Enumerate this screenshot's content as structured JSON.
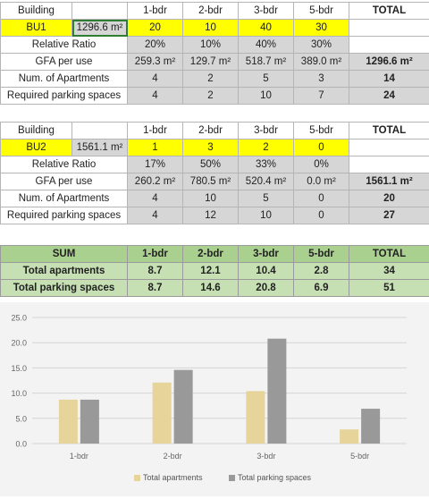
{
  "block1": {
    "header": {
      "label": "Building",
      "cols": [
        "1-bdr",
        "2-bdr",
        "3-bdr",
        "5-bdr"
      ],
      "total": "TOTAL"
    },
    "building": {
      "name": "BU1",
      "gfa": "1296.6 m²",
      "counts": [
        "20",
        "10",
        "40",
        "30"
      ]
    },
    "ratio": {
      "label": "Relative Ratio",
      "values": [
        "20%",
        "10%",
        "40%",
        "30%"
      ]
    },
    "gfa_use": {
      "label": "GFA per use",
      "values": [
        "259.3 m²",
        "129.7 m²",
        "518.7 m²",
        "389.0 m²"
      ],
      "total": "1296.6 m²"
    },
    "apartments": {
      "label": "Num. of Apartments",
      "values": [
        "4",
        "2",
        "5",
        "3"
      ],
      "total": "14"
    },
    "parking": {
      "label": "Required parking spaces",
      "values": [
        "4",
        "2",
        "10",
        "7"
      ],
      "total": "24"
    }
  },
  "block2": {
    "header": {
      "label": "Building",
      "cols": [
        "1-bdr",
        "2-bdr",
        "3-bdr",
        "5-bdr"
      ],
      "total": "TOTAL"
    },
    "building": {
      "name": "BU2",
      "gfa": "1561.1 m²",
      "counts": [
        "1",
        "3",
        "2",
        "0"
      ]
    },
    "ratio": {
      "label": "Relative Ratio",
      "values": [
        "17%",
        "50%",
        "33%",
        "0%"
      ]
    },
    "gfa_use": {
      "label": "GFA per use",
      "values": [
        "260.2 m²",
        "780.5 m²",
        "520.4 m²",
        "0.0 m²"
      ],
      "total": "1561.1 m²"
    },
    "apartments": {
      "label": "Num. of Apartments",
      "values": [
        "4",
        "10",
        "5",
        "0"
      ],
      "total": "20"
    },
    "parking": {
      "label": "Required parking spaces",
      "values": [
        "4",
        "12",
        "10",
        "0"
      ],
      "total": "27"
    }
  },
  "sum": {
    "header": {
      "label": "SUM",
      "cols": [
        "1-bdr",
        "2-bdr",
        "3-bdr",
        "5-bdr"
      ],
      "total": "TOTAL"
    },
    "apartments": {
      "label": "Total apartments",
      "values": [
        "8.7",
        "12.1",
        "10.4",
        "2.8"
      ],
      "total": "34"
    },
    "parking": {
      "label": "Total parking spaces",
      "values": [
        "8.7",
        "14.6",
        "20.8",
        "6.9"
      ],
      "total": "51"
    }
  },
  "chart_data": {
    "type": "bar",
    "categories": [
      "1-bdr",
      "2-bdr",
      "3-bdr",
      "5-bdr"
    ],
    "series": [
      {
        "name": "Total apartments",
        "values": [
          8.7,
          12.1,
          10.4,
          2.8
        ],
        "color": "#e6d49a"
      },
      {
        "name": "Total parking spaces",
        "values": [
          8.7,
          14.6,
          20.8,
          6.9
        ],
        "color": "#999999"
      }
    ],
    "ylim": [
      0,
      25
    ],
    "yticks": [
      "0.0",
      "5.0",
      "10.0",
      "15.0",
      "20.0",
      "25.0"
    ],
    "grid": true,
    "legend": "bottom"
  }
}
